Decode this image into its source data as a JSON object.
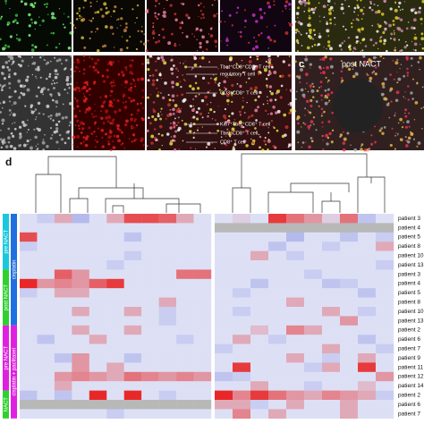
{
  "panel_c": {
    "label": "c",
    "title": "post NACT"
  },
  "annotations": [
    "Tbet⁺CD3⁺CD8⁺ T cell",
    "regulatory T cell",
    "CD3⁺CD8⁺ T cell",
    "Ki67⁺Tbet⁺CD8⁺ T cell",
    "Tbet⁺CD8⁺ T cell",
    "CD8⁺ T cell"
  ],
  "panel_d": {
    "label": "d",
    "groups": [
      "pre NACT",
      "post NACT",
      "pre NACT",
      "NACT"
    ],
    "treatments": [
      "cisplatin",
      "cisplatin + paclitaxel"
    ],
    "row_labels": [
      "patient 3",
      "patient 4",
      "patient 5",
      "patient 8",
      "patient 10",
      "patient 13",
      "patient 3",
      "patient 4",
      "patient 5",
      "patient 8",
      "patient 10",
      "patient 13",
      "patient 2",
      "patient 6",
      "patient 7",
      "patient 9",
      "patient 11",
      "patient 12",
      "patient 14",
      "patient 2",
      "patient 6",
      "patient 7"
    ],
    "heatmap_left": [
      [
        0,
        -0.2,
        0.3,
        -0.4,
        0,
        0.3,
        0.8,
        0.8,
        0.7,
        0.3,
        0
      ],
      [
        0,
        0,
        0,
        0,
        0,
        0,
        0,
        0,
        0,
        0,
        0
      ],
      [
        0.8,
        0,
        0,
        0,
        0,
        0,
        -0.3,
        0,
        0,
        0,
        0
      ],
      [
        -0.2,
        0,
        0,
        0,
        0,
        0,
        0,
        0,
        0,
        0,
        0
      ],
      [
        0,
        0,
        0,
        0,
        0,
        0,
        -0.2,
        0,
        0,
        0,
        0
      ],
      [
        0,
        0,
        0,
        0,
        0,
        -0.2,
        0,
        0,
        0,
        0,
        0
      ],
      [
        0,
        0,
        0.7,
        0.4,
        0,
        0,
        0,
        0,
        0,
        0.6,
        0.6
      ],
      [
        1,
        0.4,
        0.5,
        0.4,
        0.7,
        0.9,
        0,
        0,
        0,
        0,
        0
      ],
      [
        -0.2,
        0,
        0.3,
        0.3,
        0,
        0,
        0,
        0,
        0,
        0,
        0
      ],
      [
        0,
        0,
        0,
        0,
        0,
        0,
        0,
        0,
        0.3,
        0,
        0
      ],
      [
        0,
        0,
        0,
        0.3,
        0,
        0,
        0.3,
        0,
        -0.2,
        0,
        0
      ],
      [
        0,
        0,
        0,
        0,
        0,
        0,
        0,
        0,
        -0.2,
        0,
        0
      ],
      [
        0,
        0,
        0,
        0.3,
        0,
        0,
        0.3,
        0,
        0,
        0,
        0
      ],
      [
        0,
        -0.3,
        0,
        0,
        0.3,
        0,
        0,
        0,
        0,
        -0.2,
        0
      ],
      [
        0,
        0,
        0,
        0,
        0,
        0,
        0,
        0,
        0,
        0,
        0
      ],
      [
        0,
        0,
        -0.3,
        0.4,
        0,
        0,
        -0.3,
        0,
        0,
        0,
        0
      ],
      [
        0,
        0,
        0,
        0.4,
        0,
        0.3,
        0,
        0,
        0,
        0,
        0
      ],
      [
        0,
        0,
        0.4,
        0.5,
        0.4,
        0.3,
        0.6,
        0.5,
        0.4,
        0.5,
        0.4
      ],
      [
        0,
        0,
        0.3,
        0,
        0,
        0,
        0,
        0,
        0,
        0,
        0
      ],
      [
        -0.3,
        0,
        -0.3,
        0,
        1,
        0,
        1,
        0,
        -0.2,
        0,
        0
      ],
      [
        null,
        null,
        null,
        null,
        null,
        null,
        null,
        null,
        null,
        null,
        null
      ],
      [
        0,
        0,
        0,
        0,
        0,
        -0.2,
        0,
        0,
        0,
        0,
        0
      ]
    ],
    "heatmap_right": [
      [
        0,
        0.1,
        0,
        0.9,
        0.6,
        0.4,
        0.1,
        0.6,
        -0.3,
        0
      ],
      [
        null,
        null,
        null,
        null,
        null,
        null,
        null,
        null,
        null,
        null
      ],
      [
        0,
        0,
        0,
        0,
        -0.4,
        0,
        0,
        -0.3,
        0,
        -0.2
      ],
      [
        0,
        0,
        0,
        -0.3,
        0,
        0,
        -0.2,
        0,
        0,
        0.3
      ],
      [
        0,
        0,
        0.3,
        0,
        -0.2,
        0,
        0,
        0,
        0,
        0
      ],
      [
        0,
        0,
        0,
        0,
        0,
        0,
        0,
        0,
        0,
        -0.2
      ],
      [
        0,
        0,
        0,
        0,
        0,
        -0.2,
        0,
        0,
        0,
        0
      ],
      [
        0,
        0,
        -0.3,
        0,
        0,
        0,
        -0.3,
        -0.2,
        0,
        0
      ],
      [
        0,
        -0.2,
        0,
        0,
        0,
        0,
        0,
        0,
        -0.3,
        0
      ],
      [
        0,
        0,
        0,
        0,
        0.3,
        0,
        0,
        0,
        0,
        0
      ],
      [
        0,
        -0.2,
        0,
        0,
        0,
        0,
        0.3,
        0,
        -0.2,
        0
      ],
      [
        0,
        0,
        0,
        0,
        0,
        0,
        0,
        0.4,
        0,
        0
      ],
      [
        0,
        0,
        0.2,
        0,
        0.5,
        0.3,
        0,
        0,
        0,
        0
      ],
      [
        0,
        0.3,
        0,
        -0.2,
        0,
        0,
        0,
        0,
        -0.3,
        0
      ],
      [
        -0.2,
        0,
        0,
        0,
        0,
        0,
        0.3,
        0,
        0,
        -0.2
      ],
      [
        0,
        0,
        0,
        0,
        0.3,
        0,
        -0.2,
        0,
        0.3,
        0
      ],
      [
        0,
        0.9,
        0,
        0,
        0,
        -0.2,
        0.3,
        0,
        0.9,
        0
      ],
      [
        -0.3,
        -0.2,
        0,
        0,
        0,
        0,
        0,
        0,
        0,
        0.4
      ],
      [
        0,
        0,
        0.3,
        0,
        0,
        -0.2,
        0,
        0,
        0.2,
        0
      ],
      [
        1,
        0.5,
        0.9,
        0.6,
        0.4,
        0.3,
        0.5,
        0.4,
        0.3,
        -0.2
      ],
      [
        0.3,
        0.3,
        -0.2,
        0,
        0.3,
        0,
        0,
        0.3,
        0,
        0
      ],
      [
        0,
        0.5,
        0,
        0.3,
        0,
        0,
        0,
        0.3,
        0,
        0
      ]
    ]
  }
}
